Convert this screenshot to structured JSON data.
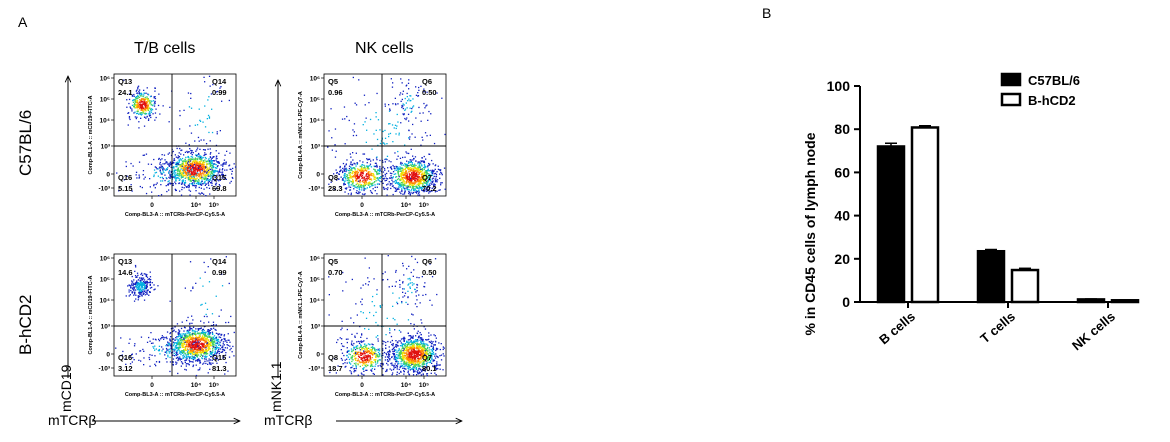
{
  "panel_a_letter": "A",
  "panel_b_letter": "B",
  "flow": {
    "col_titles": [
      "T/B cells",
      "NK cells"
    ],
    "row_labels": [
      "C57BL/6",
      "B-hCD2"
    ],
    "y_axis_markers": [
      "mCD19",
      "mNK1.1"
    ],
    "x_axis_markers": [
      "mTCRβ",
      "mTCRβ"
    ],
    "plots": [
      {
        "ylabel": "Comp-BL1-A :: mCD19-FITC-A",
        "xlabel": "Comp-BL3-A :: mTCRb-PerCP-Cy5.5-A",
        "yticks": [
          "10⁶",
          "10⁵",
          "10⁴",
          "10³",
          "0",
          "-10³"
        ],
        "xticks": [
          "0",
          "10⁴",
          "10⁵"
        ],
        "quadrants": [
          {
            "name": "Q13",
            "value": "24.1"
          },
          {
            "name": "Q14",
            "value": "0.99"
          },
          {
            "name": "Q16",
            "value": "5.15"
          },
          {
            "name": "Q15",
            "value": "69.8"
          }
        ]
      },
      {
        "ylabel": "Comp-BL4-A :: mNK1.1-PE-Cy7-A",
        "xlabel": "Comp-BL3-A :: mTCRb-PerCP-Cy5.5-A",
        "yticks": [
          "10⁶",
          "10⁵",
          "10⁴",
          "10³",
          "0",
          "-10³"
        ],
        "xticks": [
          "0",
          "10⁴",
          "10⁵"
        ],
        "quadrants": [
          {
            "name": "Q5",
            "value": "0.96"
          },
          {
            "name": "Q6",
            "value": "0.50"
          },
          {
            "name": "Q8",
            "value": "28.3"
          },
          {
            "name": "Q7",
            "value": "70.2"
          }
        ]
      },
      {
        "ylabel": "Comp-BL1-A :: mCD19-FITC-A",
        "xlabel": "Comp-BL3-A :: mTCRb-PerCP-Cy5.5-A",
        "yticks": [
          "10⁶",
          "10⁵",
          "10⁴",
          "10³",
          "0",
          "-10³"
        ],
        "xticks": [
          "0",
          "10⁴",
          "10⁵"
        ],
        "quadrants": [
          {
            "name": "Q13",
            "value": "14.6"
          },
          {
            "name": "Q14",
            "value": "0.99"
          },
          {
            "name": "Q16",
            "value": "3.12"
          },
          {
            "name": "Q15",
            "value": "81.3"
          }
        ]
      },
      {
        "ylabel": "Comp-BL4-A :: mNK1.1-PE-Cy7-A",
        "xlabel": "Comp-BL3-A :: mTCRb-PerCP-Cy5.5-A",
        "yticks": [
          "10⁶",
          "10⁵",
          "10⁴",
          "10³",
          "0",
          "-10³"
        ],
        "xticks": [
          "0",
          "10⁴",
          "10⁵"
        ],
        "quadrants": [
          {
            "name": "Q5",
            "value": "0.70"
          },
          {
            "name": "Q6",
            "value": "0.50"
          },
          {
            "name": "Q8",
            "value": "18.7"
          },
          {
            "name": "Q7",
            "value": "80.1"
          }
        ]
      }
    ]
  },
  "chart_data": {
    "type": "bar",
    "title": "",
    "xlabel": "",
    "ylabel": "% in CD45 cells of lymph node",
    "categories": [
      "B cells",
      "T cells",
      "NK cells"
    ],
    "ylim": [
      0,
      100
    ],
    "yticks": [
      0,
      20,
      40,
      60,
      80,
      100
    ],
    "legend_position": "top-right",
    "series": [
      {
        "name": "C57BL/6",
        "values": [
          72,
          23.5,
          1.2
        ],
        "errors": [
          1.5,
          0.8,
          0.2
        ],
        "fill": "#000000"
      },
      {
        "name": "B-hCD2",
        "values": [
          80.8,
          14.8,
          0.8
        ],
        "errors": [
          0.8,
          0.8,
          0.15
        ],
        "fill": "#ffffff"
      }
    ]
  }
}
